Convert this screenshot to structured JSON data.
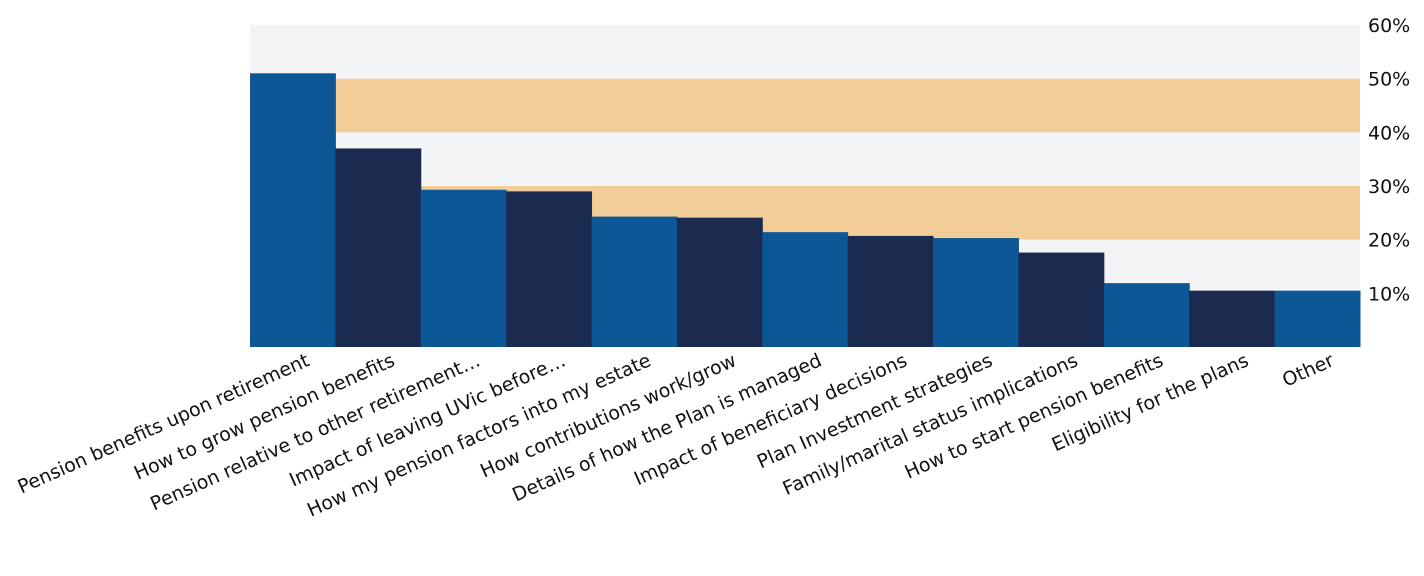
{
  "chart_data": {
    "type": "bar",
    "categories": [
      "Pension benefits upon retirement",
      "How to grow pension benefits",
      "Pension relative to other retirement…",
      "Impact of leaving UVic before…",
      "How my pension factors into my estate",
      "How contributions work/grow",
      "Details of how the Plan is managed",
      "Impact of beneficiary decisions",
      "Plan Investment strategies",
      "Family/marital status implications",
      "How to start  pension benefits",
      "Eligibility for the plans",
      "Other"
    ],
    "values": [
      51,
      37,
      29.3,
      29,
      24.3,
      24.1,
      21.4,
      20.7,
      20.3,
      17.6,
      11.9,
      10.5,
      10.5
    ],
    "yaxis": {
      "position": "right",
      "min": 0,
      "max": 60,
      "ticks": [
        10,
        20,
        30,
        40,
        50,
        60
      ],
      "tick_labels": [
        "10%",
        "20%",
        "30%",
        "40%",
        "50%",
        "60%"
      ]
    },
    "bands": [
      {
        "from": 0,
        "to": 10,
        "color": "#f3f4f6"
      },
      {
        "from": 10,
        "to": 20,
        "color": "#f3f4f6"
      },
      {
        "from": 20,
        "to": 30,
        "color": "#f3cd97"
      },
      {
        "from": 30,
        "to": 40,
        "color": "#f3f4f6"
      },
      {
        "from": 40,
        "to": 50,
        "color": "#f3cd97"
      },
      {
        "from": 50,
        "to": 60,
        "color": "#f3f4f6"
      }
    ],
    "bar_colors": [
      "#0d5796",
      "#1b2a4f"
    ],
    "grid": false,
    "legend": "none",
    "title": "",
    "xlabel": "",
    "ylabel": ""
  }
}
